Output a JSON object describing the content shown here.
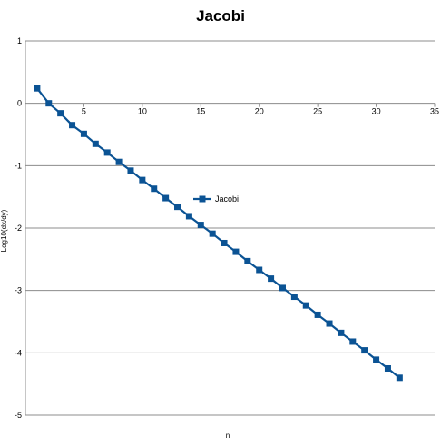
{
  "chart_data": {
    "type": "line",
    "title": "Jacobi",
    "xlabel": "n",
    "ylabel": "Log10(dx/dy)",
    "xlim": [
      0,
      35
    ],
    "ylim": [
      -5,
      1
    ],
    "xticks": [
      "0",
      "5",
      "10",
      "15",
      "20",
      "25",
      "30",
      "35"
    ],
    "yticks": [
      "1",
      "0",
      "-1",
      "-2",
      "-3",
      "-4",
      "-5"
    ],
    "grid": "horizontal",
    "legend": "center",
    "colors": {
      "series": "#0b5394"
    },
    "series": [
      {
        "name": "Jacobi",
        "x": [
          1,
          2,
          3,
          4,
          5,
          6,
          7,
          8,
          9,
          10,
          11,
          12,
          13,
          14,
          15,
          16,
          17,
          18,
          19,
          20,
          21,
          22,
          23,
          24,
          25,
          26,
          27,
          28,
          29,
          30,
          31,
          32
        ],
        "y": [
          0.24,
          0.0,
          -0.16,
          -0.35,
          -0.49,
          -0.65,
          -0.79,
          -0.94,
          -1.08,
          -1.23,
          -1.37,
          -1.52,
          -1.66,
          -1.81,
          -1.95,
          -2.09,
          -2.24,
          -2.38,
          -2.53,
          -2.67,
          -2.81,
          -2.96,
          -3.1,
          -3.24,
          -3.39,
          -3.53,
          -3.68,
          -3.82,
          -3.96,
          -4.11,
          -4.25,
          -4.4
        ]
      }
    ]
  }
}
